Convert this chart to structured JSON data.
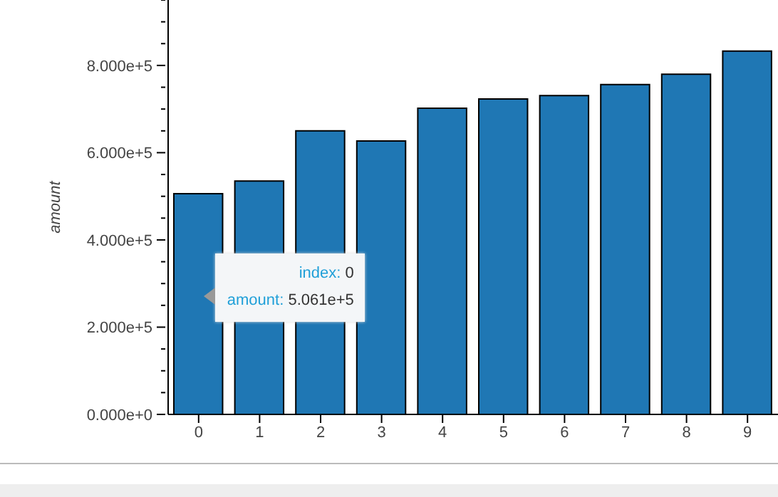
{
  "chart_data": {
    "type": "bar",
    "ylabel": "amount",
    "categories": [
      "0",
      "1",
      "2",
      "3",
      "4",
      "5",
      "6",
      "7",
      "8",
      "9"
    ],
    "values": [
      506100,
      535000,
      650000,
      627000,
      702000,
      723000,
      731000,
      756000,
      780000,
      833000
    ],
    "color": "#1f77b4",
    "ylim": [
      0,
      950000
    ],
    "yticks": [
      {
        "value": 0,
        "label": "0.000e+0"
      },
      {
        "value": 50000,
        "label": null
      },
      {
        "value": 100000,
        "label": null
      },
      {
        "value": 150000,
        "label": null
      },
      {
        "value": 200000,
        "label": "2.000e+5"
      },
      {
        "value": 250000,
        "label": null
      },
      {
        "value": 300000,
        "label": null
      },
      {
        "value": 350000,
        "label": null
      },
      {
        "value": 400000,
        "label": "4.000e+5"
      },
      {
        "value": 450000,
        "label": null
      },
      {
        "value": 500000,
        "label": null
      },
      {
        "value": 550000,
        "label": null
      },
      {
        "value": 600000,
        "label": "6.000e+5"
      },
      {
        "value": 650000,
        "label": null
      },
      {
        "value": 700000,
        "label": null
      },
      {
        "value": 750000,
        "label": null
      },
      {
        "value": 800000,
        "label": "8.000e+5"
      },
      {
        "value": 850000,
        "label": null
      },
      {
        "value": 900000,
        "label": null
      },
      {
        "value": 950000,
        "label": null
      }
    ],
    "annotations": [
      "index: 0",
      "amount: 5.061e+5"
    ]
  }
}
